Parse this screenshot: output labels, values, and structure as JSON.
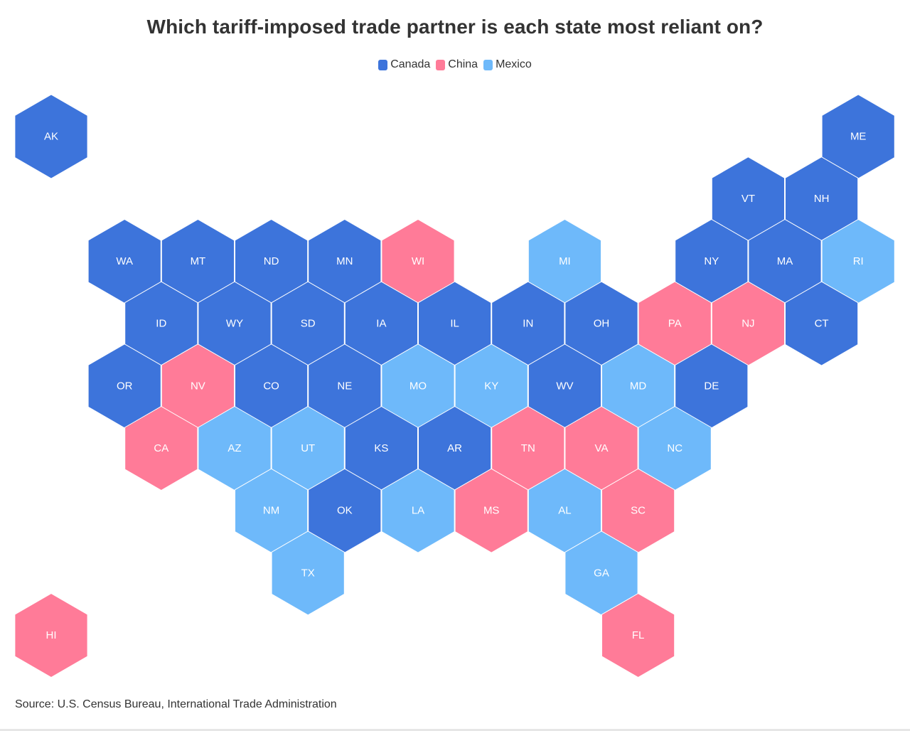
{
  "title": "Which tariff-imposed trade partner is each state most reliant on?",
  "legend": [
    {
      "label": "Canada",
      "color": "#3d74db"
    },
    {
      "label": "China",
      "color": "#ff7b98"
    },
    {
      "label": "Mexico",
      "color": "#6eb9fa"
    }
  ],
  "source": "Source: U.S. Census Bureau, International Trade Administration",
  "map_data": {
    "type": "hex-tile-map",
    "states": [
      {
        "abbr": "AK",
        "partner": "Canada"
      },
      {
        "abbr": "ME",
        "partner": "Canada"
      },
      {
        "abbr": "VT",
        "partner": "Canada"
      },
      {
        "abbr": "NH",
        "partner": "Canada"
      },
      {
        "abbr": "WA",
        "partner": "Canada"
      },
      {
        "abbr": "MT",
        "partner": "Canada"
      },
      {
        "abbr": "ND",
        "partner": "Canada"
      },
      {
        "abbr": "MN",
        "partner": "Canada"
      },
      {
        "abbr": "WI",
        "partner": "China"
      },
      {
        "abbr": "MI",
        "partner": "Mexico"
      },
      {
        "abbr": "NY",
        "partner": "Canada"
      },
      {
        "abbr": "MA",
        "partner": "Canada"
      },
      {
        "abbr": "RI",
        "partner": "Mexico"
      },
      {
        "abbr": "ID",
        "partner": "Canada"
      },
      {
        "abbr": "WY",
        "partner": "Canada"
      },
      {
        "abbr": "SD",
        "partner": "Canada"
      },
      {
        "abbr": "IA",
        "partner": "Canada"
      },
      {
        "abbr": "IL",
        "partner": "Canada"
      },
      {
        "abbr": "IN",
        "partner": "Canada"
      },
      {
        "abbr": "OH",
        "partner": "Canada"
      },
      {
        "abbr": "PA",
        "partner": "China"
      },
      {
        "abbr": "NJ",
        "partner": "China"
      },
      {
        "abbr": "CT",
        "partner": "Canada"
      },
      {
        "abbr": "OR",
        "partner": "Canada"
      },
      {
        "abbr": "NV",
        "partner": "China"
      },
      {
        "abbr": "CO",
        "partner": "Canada"
      },
      {
        "abbr": "NE",
        "partner": "Canada"
      },
      {
        "abbr": "MO",
        "partner": "Mexico"
      },
      {
        "abbr": "KY",
        "partner": "Mexico"
      },
      {
        "abbr": "WV",
        "partner": "Canada"
      },
      {
        "abbr": "MD",
        "partner": "Mexico"
      },
      {
        "abbr": "DE",
        "partner": "Canada"
      },
      {
        "abbr": "CA",
        "partner": "China"
      },
      {
        "abbr": "AZ",
        "partner": "Mexico"
      },
      {
        "abbr": "UT",
        "partner": "Mexico"
      },
      {
        "abbr": "KS",
        "partner": "Canada"
      },
      {
        "abbr": "AR",
        "partner": "Canada"
      },
      {
        "abbr": "TN",
        "partner": "China"
      },
      {
        "abbr": "VA",
        "partner": "China"
      },
      {
        "abbr": "NC",
        "partner": "Mexico"
      },
      {
        "abbr": "NM",
        "partner": "Mexico"
      },
      {
        "abbr": "OK",
        "partner": "Canada"
      },
      {
        "abbr": "LA",
        "partner": "Mexico"
      },
      {
        "abbr": "MS",
        "partner": "China"
      },
      {
        "abbr": "AL",
        "partner": "Mexico"
      },
      {
        "abbr": "SC",
        "partner": "China"
      },
      {
        "abbr": "TX",
        "partner": "Mexico"
      },
      {
        "abbr": "GA",
        "partner": "Mexico"
      },
      {
        "abbr": "HI",
        "partner": "China"
      },
      {
        "abbr": "FL",
        "partner": "China"
      }
    ]
  }
}
